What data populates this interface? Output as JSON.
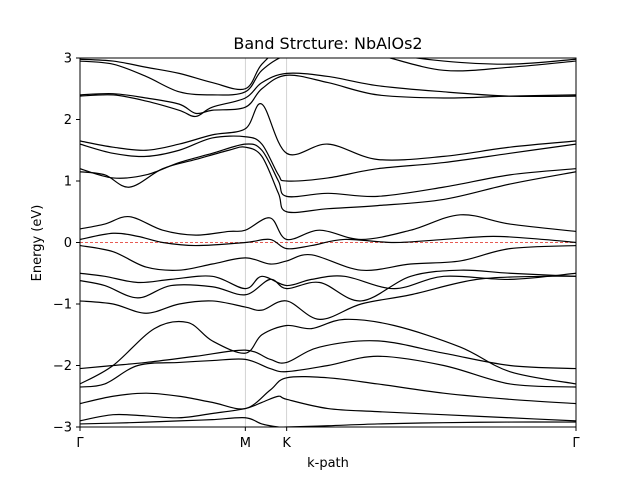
{
  "chart_data": {
    "type": "line",
    "title": "Band Strcture: NbAlOs2",
    "xlabel": "k-path",
    "ylabel": "Energy (eV)",
    "ylim": [
      -3,
      3
    ],
    "yticks": [
      -3,
      -2,
      -1,
      0,
      1,
      2,
      3
    ],
    "high_symmetry_points": [
      {
        "label": "Γ",
        "k": 0.0
      },
      {
        "label": "M",
        "k": 1.0
      },
      {
        "label": "K",
        "k": 1.25
      },
      {
        "label": "Γ",
        "k": 3.0
      }
    ],
    "fermi_level": 0.0,
    "grid": "vertical lines at high-symmetry points",
    "bands": [
      {
        "x": [
          0,
          0.3,
          0.6,
          0.8,
          1.0,
          1.1,
          1.2,
          1.25,
          1.5,
          1.8,
          2.2,
          2.6,
          3.0
        ],
        "y": [
          -2.95,
          -2.93,
          -2.9,
          -2.88,
          -2.85,
          -2.95,
          -3.0,
          -3.0,
          -2.98,
          -2.95,
          -2.93,
          -2.92,
          -2.92
        ]
      },
      {
        "x": [
          0,
          0.2,
          0.4,
          0.6,
          0.8,
          1.0,
          1.1,
          1.2,
          1.25,
          1.5,
          1.8,
          2.2,
          2.6,
          3.0
        ],
        "y": [
          -2.9,
          -2.8,
          -2.82,
          -2.85,
          -2.78,
          -2.7,
          -2.6,
          -2.5,
          -2.55,
          -2.7,
          -2.75,
          -2.8,
          -2.85,
          -2.9
        ]
      },
      {
        "x": [
          0,
          0.2,
          0.4,
          0.6,
          0.8,
          1.0,
          1.15,
          1.25,
          1.5,
          1.8,
          2.2,
          2.6,
          3.0
        ],
        "y": [
          -2.62,
          -2.5,
          -2.45,
          -2.5,
          -2.6,
          -2.7,
          -2.4,
          -2.2,
          -2.2,
          -2.3,
          -2.45,
          -2.55,
          -2.62
        ]
      },
      {
        "x": [
          0,
          0.15,
          0.35,
          0.6,
          0.8,
          1.0,
          1.15,
          1.25,
          1.5,
          1.8,
          2.2,
          2.6,
          3.0
        ],
        "y": [
          -2.35,
          -2.3,
          -2.0,
          -1.95,
          -1.92,
          -1.9,
          -2.05,
          -2.1,
          -2.0,
          -1.85,
          -2.0,
          -2.3,
          -2.35
        ]
      },
      {
        "x": [
          0,
          0.2,
          0.4,
          0.7,
          1.0,
          1.15,
          1.25,
          1.45,
          1.8,
          2.2,
          2.6,
          3.0
        ],
        "y": [
          -2.05,
          -2.0,
          -1.95,
          -1.85,
          -1.75,
          -1.9,
          -1.95,
          -1.7,
          -1.6,
          -1.8,
          -2.0,
          -2.05
        ]
      },
      {
        "x": [
          0,
          0.2,
          0.45,
          0.65,
          0.8,
          1.0,
          1.1,
          1.25,
          1.4,
          1.6,
          1.9,
          2.3,
          2.6,
          3.0
        ],
        "y": [
          -2.3,
          -2.0,
          -1.4,
          -1.3,
          -1.6,
          -1.8,
          -1.5,
          -1.35,
          -1.4,
          -1.25,
          -1.35,
          -1.7,
          -2.1,
          -2.3
        ]
      },
      {
        "x": [
          0,
          0.2,
          0.4,
          0.6,
          0.8,
          1.0,
          1.1,
          1.25,
          1.45,
          1.7,
          2.0,
          2.4,
          2.8,
          3.0
        ],
        "y": [
          -0.95,
          -1.0,
          -1.15,
          -1.0,
          -0.95,
          -1.05,
          -1.1,
          -0.95,
          -1.25,
          -1.0,
          -0.85,
          -0.6,
          -0.55,
          -0.55
        ]
      },
      {
        "x": [
          0,
          0.15,
          0.35,
          0.55,
          0.8,
          1.0,
          1.15,
          1.25,
          1.45,
          1.7,
          2.0,
          2.3,
          2.6,
          3.0
        ],
        "y": [
          -0.62,
          -0.7,
          -0.9,
          -0.7,
          -0.72,
          -0.85,
          -0.6,
          -0.75,
          -0.65,
          -0.95,
          -0.55,
          -0.45,
          -0.5,
          -0.55
        ]
      },
      {
        "x": [
          0,
          0.15,
          0.35,
          0.55,
          0.8,
          1.0,
          1.1,
          1.25,
          1.4,
          1.6,
          1.9,
          2.2,
          2.6,
          3.0
        ],
        "y": [
          -0.5,
          -0.55,
          -0.65,
          -0.6,
          -0.55,
          -0.75,
          -0.55,
          -0.7,
          -0.6,
          -0.55,
          -0.75,
          -0.55,
          -0.6,
          -0.5
        ]
      },
      {
        "x": [
          0,
          0.2,
          0.4,
          0.6,
          0.8,
          1.0,
          1.15,
          1.25,
          1.4,
          1.7,
          2.0,
          2.3,
          2.6,
          3.0
        ],
        "y": [
          -0.05,
          -0.15,
          -0.4,
          -0.45,
          -0.35,
          -0.25,
          -0.35,
          -0.3,
          -0.2,
          -0.45,
          -0.35,
          -0.3,
          -0.1,
          -0.05
        ]
      },
      {
        "x": [
          0,
          0.2,
          0.35,
          0.5,
          0.7,
          1.0,
          1.15,
          1.25,
          1.4,
          1.6,
          1.9,
          2.2,
          2.5,
          2.8,
          3.0
        ],
        "y": [
          0.05,
          0.15,
          0.1,
          0.0,
          -0.05,
          0.0,
          0.05,
          -0.1,
          -0.05,
          0.05,
          0.0,
          0.05,
          0.1,
          0.05,
          0.0
        ]
      },
      {
        "x": [
          0,
          0.15,
          0.3,
          0.5,
          0.7,
          0.9,
          1.0,
          1.15,
          1.25,
          1.45,
          1.7,
          2.0,
          2.3,
          2.6,
          3.0
        ],
        "y": [
          0.22,
          0.3,
          0.42,
          0.2,
          0.12,
          0.18,
          0.2,
          0.4,
          0.05,
          0.2,
          0.05,
          0.2,
          0.45,
          0.3,
          0.18
        ]
      },
      {
        "x": [
          0,
          0.15,
          0.3,
          0.5,
          0.7,
          0.9,
          1.0,
          1.1,
          1.2,
          1.25,
          1.5,
          1.8,
          2.2,
          2.6,
          3.0
        ],
        "y": [
          1.15,
          1.1,
          0.9,
          1.2,
          1.35,
          1.5,
          1.55,
          1.4,
          0.8,
          0.5,
          0.55,
          0.6,
          0.7,
          0.95,
          1.15
        ]
      },
      {
        "x": [
          0,
          0.2,
          0.4,
          0.6,
          0.8,
          1.0,
          1.1,
          1.2,
          1.25,
          1.5,
          1.8,
          2.2,
          2.6,
          3.0
        ],
        "y": [
          1.2,
          1.05,
          1.1,
          1.3,
          1.45,
          1.6,
          1.5,
          1.0,
          0.75,
          0.8,
          0.75,
          0.9,
          1.1,
          1.2
        ]
      },
      {
        "x": [
          0,
          0.2,
          0.4,
          0.6,
          0.8,
          1.0,
          1.1,
          1.2,
          1.25,
          1.5,
          1.8,
          2.2,
          2.6,
          3.0
        ],
        "y": [
          1.6,
          1.45,
          1.4,
          1.5,
          1.7,
          1.72,
          1.6,
          1.1,
          1.0,
          1.05,
          1.2,
          1.3,
          1.45,
          1.6
        ]
      },
      {
        "x": [
          0,
          0.2,
          0.4,
          0.6,
          0.8,
          1.0,
          1.1,
          1.25,
          1.5,
          1.8,
          2.2,
          2.6,
          3.0
        ],
        "y": [
          1.65,
          1.55,
          1.5,
          1.6,
          1.75,
          1.85,
          2.25,
          1.45,
          1.6,
          1.35,
          1.4,
          1.55,
          1.65
        ]
      },
      {
        "x": [
          0,
          0.2,
          0.4,
          0.6,
          0.7,
          0.8,
          1.0,
          1.1,
          1.25,
          1.5,
          1.8,
          2.2,
          2.6,
          3.0
        ],
        "y": [
          2.38,
          2.4,
          2.3,
          2.15,
          2.05,
          2.2,
          2.35,
          2.6,
          2.75,
          2.7,
          2.55,
          2.45,
          2.38,
          2.38
        ]
      },
      {
        "x": [
          0,
          0.2,
          0.4,
          0.6,
          0.7,
          0.8,
          1.0,
          1.1,
          1.25,
          1.5,
          1.8,
          2.2,
          2.6,
          3.0
        ],
        "y": [
          2.4,
          2.42,
          2.35,
          2.25,
          2.1,
          2.15,
          2.2,
          2.5,
          2.72,
          2.6,
          2.4,
          2.35,
          2.38,
          2.4
        ]
      },
      {
        "x": [
          0,
          0.2,
          0.4,
          0.6,
          0.8,
          1.0,
          1.1,
          1.25,
          1.5,
          1.8,
          2.2,
          2.6,
          3.0
        ],
        "y": [
          2.95,
          2.9,
          2.7,
          2.45,
          2.4,
          2.45,
          2.8,
          3.05,
          3.2,
          3.05,
          2.8,
          2.85,
          2.95
        ]
      },
      {
        "x": [
          0,
          0.2,
          0.4,
          0.6,
          0.8,
          1.0,
          1.1,
          1.25,
          1.5,
          1.8,
          2.2,
          2.6,
          3.0
        ],
        "y": [
          2.98,
          2.95,
          2.85,
          2.75,
          2.6,
          2.5,
          2.9,
          3.2,
          3.3,
          3.1,
          2.95,
          2.9,
          2.98
        ]
      }
    ]
  }
}
